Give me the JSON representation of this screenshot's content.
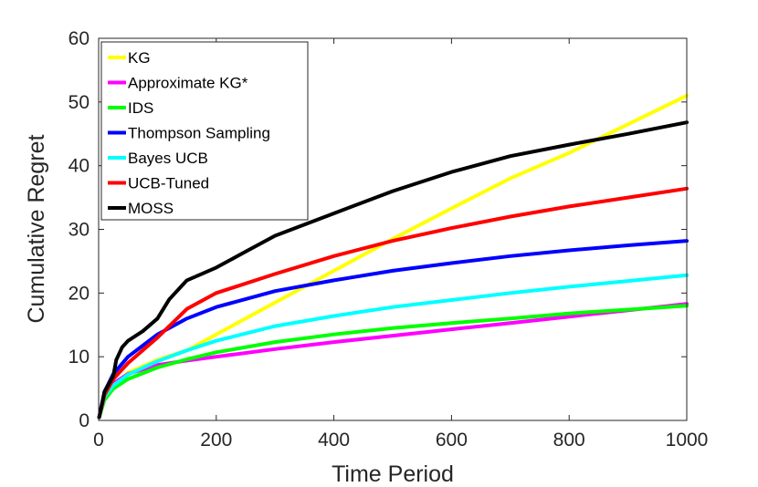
{
  "chart_data": {
    "type": "line",
    "title": "",
    "xlabel": "Time Period",
    "ylabel": "Cumulative Regret",
    "xlim": [
      0,
      1000
    ],
    "ylim": [
      0,
      60
    ],
    "xticks": [
      0,
      200,
      400,
      600,
      800,
      1000
    ],
    "yticks": [
      0,
      10,
      20,
      30,
      40,
      50,
      60
    ],
    "grid": false,
    "legend_position": "top-left",
    "series": [
      {
        "name": "KG",
        "color": "#ffff00",
        "x": [
          1,
          10,
          25,
          50,
          100,
          150,
          200,
          300,
          400,
          500,
          600,
          700,
          800,
          900,
          1000
        ],
        "y": [
          0.5,
          3.5,
          5.5,
          7.5,
          9.5,
          11.0,
          13.5,
          18.5,
          23.5,
          28.5,
          33.3,
          38.0,
          42.0,
          46.5,
          51.0
        ]
      },
      {
        "name": "Approximate KG*",
        "color": "#ff00ff",
        "x": [
          1,
          10,
          25,
          50,
          100,
          150,
          200,
          300,
          400,
          500,
          600,
          700,
          800,
          900,
          1000
        ],
        "y": [
          0.5,
          3.8,
          5.8,
          7.3,
          8.7,
          9.4,
          10.0,
          11.2,
          12.3,
          13.3,
          14.3,
          15.3,
          16.3,
          17.3,
          18.3
        ]
      },
      {
        "name": "IDS",
        "color": "#00ff00",
        "x": [
          1,
          10,
          25,
          50,
          100,
          150,
          200,
          300,
          400,
          500,
          600,
          700,
          800,
          900,
          1000
        ],
        "y": [
          0.5,
          3.2,
          5.0,
          6.5,
          8.3,
          9.6,
          10.7,
          12.3,
          13.5,
          14.5,
          15.3,
          16.0,
          16.8,
          17.4,
          18.0
        ]
      },
      {
        "name": "Thompson Sampling",
        "color": "#0000ff",
        "x": [
          1,
          10,
          25,
          50,
          100,
          150,
          200,
          300,
          400,
          500,
          600,
          700,
          800,
          900,
          1000
        ],
        "y": [
          0.5,
          4.5,
          7.3,
          10.0,
          13.5,
          16.0,
          17.8,
          20.3,
          22.0,
          23.5,
          24.7,
          25.8,
          26.7,
          27.5,
          28.2
        ]
      },
      {
        "name": "Bayes UCB",
        "color": "#00ffff",
        "x": [
          1,
          10,
          25,
          50,
          100,
          150,
          200,
          300,
          400,
          500,
          600,
          700,
          800,
          900,
          1000
        ],
        "y": [
          0.5,
          3.7,
          5.5,
          7.2,
          9.3,
          11.0,
          12.5,
          14.8,
          16.4,
          17.8,
          18.9,
          20.0,
          21.0,
          21.9,
          22.8
        ]
      },
      {
        "name": "UCB-Tuned",
        "color": "#ff0000",
        "x": [
          1,
          10,
          25,
          50,
          100,
          150,
          200,
          300,
          400,
          500,
          600,
          700,
          800,
          900,
          1000
        ],
        "y": [
          0.5,
          4.0,
          6.5,
          9.0,
          13.0,
          17.5,
          20.0,
          23.0,
          25.8,
          28.2,
          30.2,
          32.0,
          33.6,
          35.0,
          36.4
        ]
      },
      {
        "name": "MOSS",
        "color": "#000000",
        "x": [
          1,
          10,
          25,
          30,
          40,
          50,
          75,
          100,
          120,
          150,
          200,
          250,
          300,
          400,
          500,
          600,
          700,
          800,
          900,
          1000
        ],
        "y": [
          0.5,
          4.5,
          7.0,
          9.5,
          11.5,
          12.5,
          14.0,
          16.0,
          19.0,
          22.0,
          24.0,
          26.5,
          29.0,
          32.5,
          36.0,
          39.0,
          41.5,
          43.3,
          45.0,
          46.8
        ]
      }
    ]
  }
}
